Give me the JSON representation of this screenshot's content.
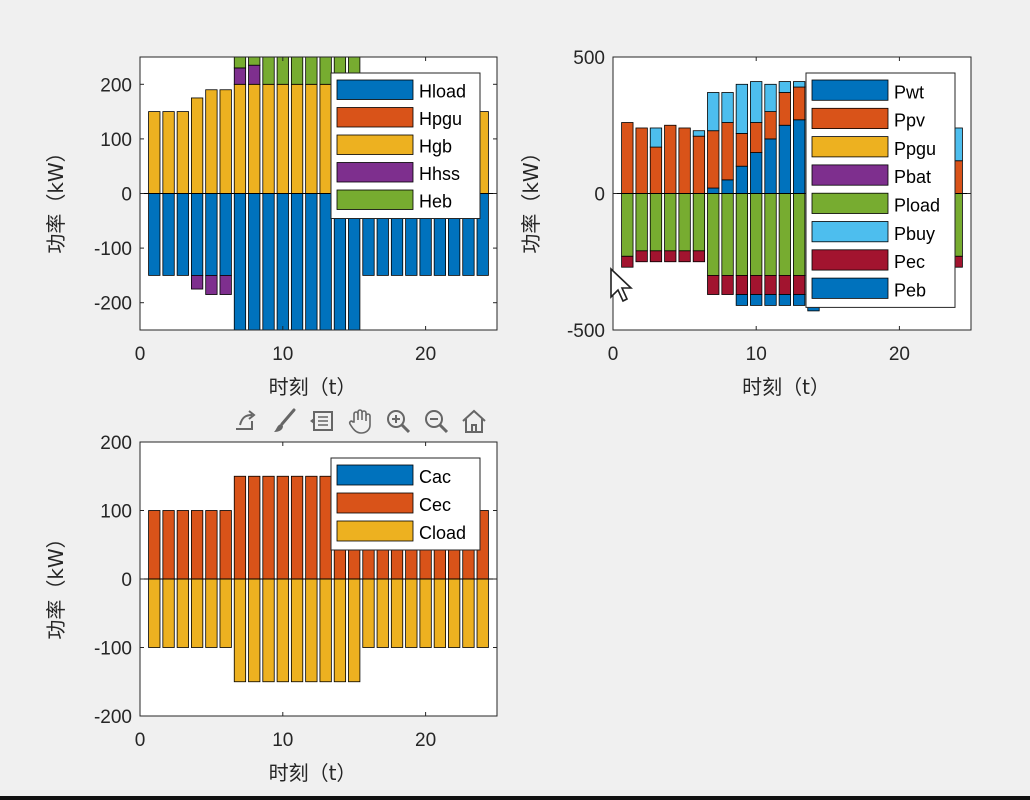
{
  "colors": {
    "blue": "#0072BD",
    "orange": "#D95319",
    "yellow": "#EDB120",
    "purple": "#7E2F8E",
    "green": "#77AC30",
    "lightblue": "#4DBEEE",
    "darkred": "#A2142F"
  },
  "toolbar": {
    "icons": [
      "export-icon",
      "brush-icon",
      "data-tips-icon",
      "pan-hand-icon",
      "zoom-in-icon",
      "zoom-out-icon",
      "home-icon"
    ]
  },
  "chart_data": [
    {
      "type": "bar",
      "stacked": true,
      "title": "",
      "xlabel": "时刻（t）",
      "ylabel": "功率（kW）",
      "xlim": [
        0,
        25
      ],
      "ylim": [
        -250,
        250
      ],
      "xticks": [
        "0",
        "10",
        "20"
      ],
      "yticks": [
        "-200",
        "-100",
        "0",
        "100",
        "200"
      ],
      "legend_position": "top-right",
      "x": [
        1,
        2,
        3,
        4,
        5,
        6,
        7,
        8,
        9,
        10,
        11,
        12,
        13,
        14,
        15,
        16,
        17,
        18,
        19,
        20,
        21,
        22,
        23,
        24
      ],
      "series": [
        {
          "name": "Hload",
          "color": "blue",
          "values": [
            -150,
            -150,
            -150,
            -150,
            -150,
            -150,
            -250,
            -250,
            -250,
            -250,
            -250,
            -250,
            -250,
            -250,
            -250,
            -150,
            -150,
            -150,
            -150,
            -150,
            -150,
            -150,
            -150,
            -150
          ]
        },
        {
          "name": "Hpgu",
          "color": "orange",
          "values": [
            0,
            0,
            0,
            0,
            0,
            0,
            0,
            0,
            0,
            0,
            0,
            0,
            0,
            0,
            0,
            0,
            0,
            0,
            0,
            0,
            0,
            0,
            0,
            0
          ]
        },
        {
          "name": "Hgb",
          "color": "yellow",
          "values": [
            150,
            150,
            150,
            175,
            190,
            190,
            200,
            200,
            200,
            200,
            200,
            200,
            200,
            200,
            200,
            200,
            200,
            200,
            200,
            200,
            200,
            200,
            200,
            150
          ]
        },
        {
          "name": "Hhss",
          "color": "purple",
          "values": [
            0,
            0,
            0,
            -25,
            -35,
            -35,
            30,
            35,
            0,
            0,
            0,
            0,
            0,
            0,
            0,
            0,
            0,
            0,
            0,
            0,
            0,
            0,
            0,
            0
          ]
        },
        {
          "name": "Heb",
          "color": "green",
          "values": [
            0,
            0,
            0,
            0,
            0,
            0,
            20,
            15,
            50,
            50,
            50,
            50,
            50,
            50,
            50,
            0,
            0,
            0,
            0,
            0,
            0,
            0,
            0,
            0
          ]
        }
      ]
    },
    {
      "type": "bar",
      "stacked": true,
      "title": "",
      "xlabel": "时刻（t）",
      "ylabel": "功率（kW）",
      "xlim": [
        0,
        25
      ],
      "ylim": [
        -500,
        500
      ],
      "xticks": [
        "0",
        "10",
        "20"
      ],
      "yticks": [
        "-500",
        "0",
        "500"
      ],
      "legend_position": "top-right",
      "x": [
        1,
        2,
        3,
        4,
        5,
        6,
        7,
        8,
        9,
        10,
        11,
        12,
        13,
        14,
        15,
        16,
        17,
        18,
        19,
        20,
        21,
        22,
        23,
        24
      ],
      "series": [
        {
          "name": "Pwt",
          "color": "blue",
          "values": [
            0,
            0,
            0,
            0,
            0,
            0,
            20,
            50,
            100,
            150,
            200,
            250,
            270,
            280,
            260,
            240,
            200,
            150,
            120,
            80,
            40,
            20,
            10,
            0
          ]
        },
        {
          "name": "Ppv",
          "color": "orange",
          "values": [
            260,
            240,
            170,
            250,
            240,
            210,
            210,
            210,
            120,
            110,
            100,
            120,
            120,
            100,
            100,
            110,
            120,
            150,
            150,
            150,
            160,
            180,
            170,
            120
          ]
        },
        {
          "name": "Ppgu",
          "color": "yellow",
          "values": [
            0,
            0,
            0,
            0,
            0,
            0,
            0,
            0,
            0,
            0,
            0,
            0,
            0,
            0,
            0,
            0,
            0,
            0,
            0,
            0,
            0,
            0,
            0,
            0
          ]
        },
        {
          "name": "Pbat",
          "color": "purple",
          "values": [
            0,
            0,
            0,
            0,
            0,
            0,
            0,
            0,
            0,
            0,
            0,
            0,
            0,
            0,
            0,
            0,
            0,
            0,
            0,
            0,
            0,
            0,
            0,
            0
          ]
        },
        {
          "name": "Pload",
          "color": "green",
          "values": [
            -230,
            -210,
            -210,
            -210,
            -210,
            -210,
            -300,
            -300,
            -300,
            -300,
            -300,
            -300,
            -300,
            -300,
            -300,
            -300,
            -300,
            -300,
            -300,
            -300,
            -300,
            -300,
            -300,
            -230
          ]
        },
        {
          "name": "Pbuy",
          "color": "lightblue",
          "values": [
            0,
            0,
            70,
            0,
            0,
            20,
            140,
            110,
            180,
            150,
            100,
            40,
            20,
            20,
            40,
            50,
            60,
            80,
            100,
            100,
            100,
            80,
            70,
            120
          ]
        },
        {
          "name": "Pec",
          "color": "darkred",
          "values": [
            -40,
            -40,
            -40,
            -40,
            -40,
            -40,
            -70,
            -70,
            -70,
            -70,
            -70,
            -70,
            -70,
            -70,
            -70,
            -70,
            -70,
            -70,
            -70,
            -70,
            -70,
            -70,
            -70,
            -40
          ]
        },
        {
          "name": "Peb",
          "color": "blue",
          "values": [
            0,
            0,
            0,
            0,
            0,
            0,
            0,
            0,
            -40,
            -40,
            -40,
            -40,
            -40,
            -60,
            -40,
            -30,
            0,
            0,
            0,
            0,
            0,
            0,
            0,
            0
          ]
        }
      ]
    },
    {
      "type": "bar",
      "stacked": true,
      "title": "",
      "xlabel": "时刻（t）",
      "ylabel": "功率（kW）",
      "xlim": [
        0,
        25
      ],
      "ylim": [
        -200,
        200
      ],
      "xticks": [
        "0",
        "10",
        "20"
      ],
      "yticks": [
        "-200",
        "-100",
        "0",
        "100",
        "200"
      ],
      "legend_position": "top-right",
      "x": [
        1,
        2,
        3,
        4,
        5,
        6,
        7,
        8,
        9,
        10,
        11,
        12,
        13,
        14,
        15,
        16,
        17,
        18,
        19,
        20,
        21,
        22,
        23,
        24
      ],
      "series": [
        {
          "name": "Cac",
          "color": "blue",
          "values": [
            0,
            0,
            0,
            0,
            0,
            0,
            0,
            0,
            0,
            0,
            0,
            0,
            0,
            0,
            0,
            0,
            0,
            0,
            0,
            0,
            0,
            0,
            0,
            0
          ]
        },
        {
          "name": "Cec",
          "color": "orange",
          "values": [
            100,
            100,
            100,
            100,
            100,
            100,
            150,
            150,
            150,
            150,
            150,
            150,
            150,
            150,
            150,
            100,
            100,
            100,
            100,
            100,
            100,
            100,
            100,
            100
          ]
        },
        {
          "name": "Cload",
          "color": "yellow",
          "values": [
            -100,
            -100,
            -100,
            -100,
            -100,
            -100,
            -150,
            -150,
            -150,
            -150,
            -150,
            -150,
            -150,
            -150,
            -150,
            -100,
            -100,
            -100,
            -100,
            -100,
            -100,
            -100,
            -100,
            -100
          ]
        }
      ]
    }
  ]
}
